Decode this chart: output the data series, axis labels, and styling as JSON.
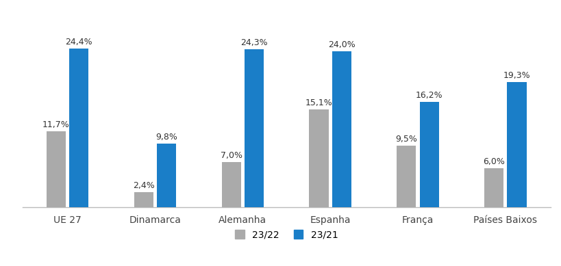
{
  "categories": [
    "UE 27",
    "Dinamarca",
    "Alemanha",
    "Espanha",
    "França",
    "Países Baixos"
  ],
  "series_2322": [
    11.7,
    2.4,
    7.0,
    15.1,
    9.5,
    6.0
  ],
  "series_2321": [
    24.4,
    9.8,
    24.3,
    24.0,
    16.2,
    19.3
  ],
  "labels_2322": [
    "11,7%",
    "2,4%",
    "7,0%",
    "15,1%",
    "9,5%",
    "6,0%"
  ],
  "labels_2321": [
    "24,4%",
    "9,8%",
    "24,3%",
    "24,0%",
    "16,2%",
    "19,3%"
  ],
  "color_2322": "#aaaaaa",
  "color_2321": "#1a7ec8",
  "legend_labels": [
    "23/22",
    "23/21"
  ],
  "background_color": "#ffffff",
  "bar_width": 0.22,
  "ylim": [
    0,
    29
  ],
  "label_fontsize": 9.0,
  "tick_fontsize": 10,
  "legend_fontsize": 10
}
